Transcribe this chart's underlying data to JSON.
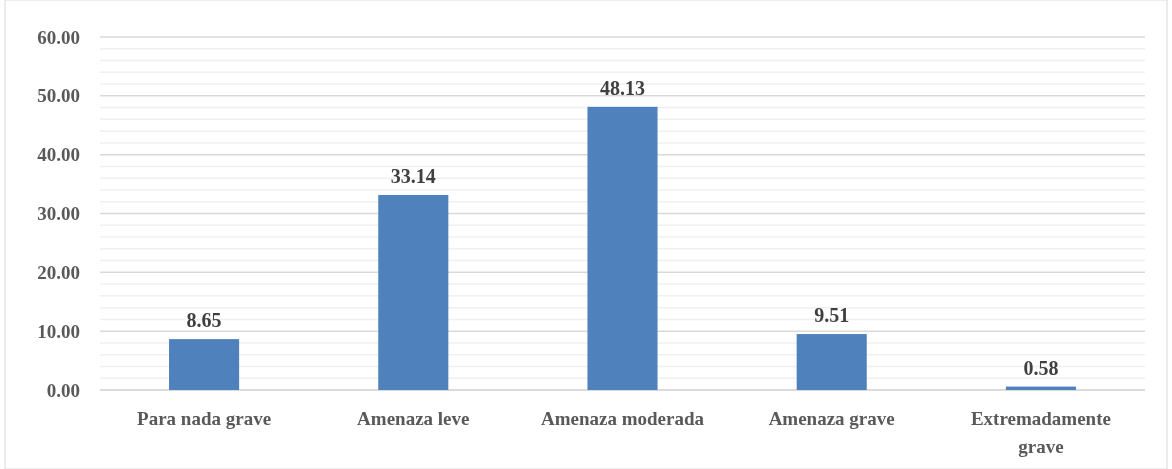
{
  "chart_data": {
    "type": "bar",
    "categories": [
      "Para nada grave",
      "Amenaza leve",
      "Amenaza moderada",
      "Amenaza grave",
      "Extremadamente grave"
    ],
    "values": [
      8.65,
      33.14,
      48.13,
      9.51,
      0.58
    ],
    "color": "#4f81bd",
    "ylim": [
      0,
      60
    ],
    "yticks": [
      {
        "value": 0,
        "label": "0.00"
      },
      {
        "value": 2,
        "label": null
      },
      {
        "value": 4,
        "label": null
      },
      {
        "value": 6,
        "label": null
      },
      {
        "value": 8,
        "label": null
      },
      {
        "value": 10,
        "label": "10.00"
      },
      {
        "value": 12,
        "label": null
      },
      {
        "value": 14,
        "label": null
      },
      {
        "value": 16,
        "label": null
      },
      {
        "value": 18,
        "label": null
      },
      {
        "value": 20,
        "label": "20.00"
      },
      {
        "value": 22,
        "label": null
      },
      {
        "value": 24,
        "label": null
      },
      {
        "value": 26,
        "label": null
      },
      {
        "value": 28,
        "label": null
      },
      {
        "value": 30,
        "label": "30.00"
      },
      {
        "value": 32,
        "label": null
      },
      {
        "value": 34,
        "label": null
      },
      {
        "value": 36,
        "label": null
      },
      {
        "value": 38,
        "label": null
      },
      {
        "value": 40,
        "label": "40.00"
      },
      {
        "value": 42,
        "label": null
      },
      {
        "value": 44,
        "label": null
      },
      {
        "value": 46,
        "label": null
      },
      {
        "value": 48,
        "label": null
      },
      {
        "value": 50,
        "label": "50.00"
      },
      {
        "value": 52,
        "label": null
      },
      {
        "value": 54,
        "label": null
      },
      {
        "value": 56,
        "label": null
      },
      {
        "value": 58,
        "label": null
      },
      {
        "value": 60,
        "label": "60.00"
      }
    ],
    "grid": true,
    "data_labels": true
  }
}
